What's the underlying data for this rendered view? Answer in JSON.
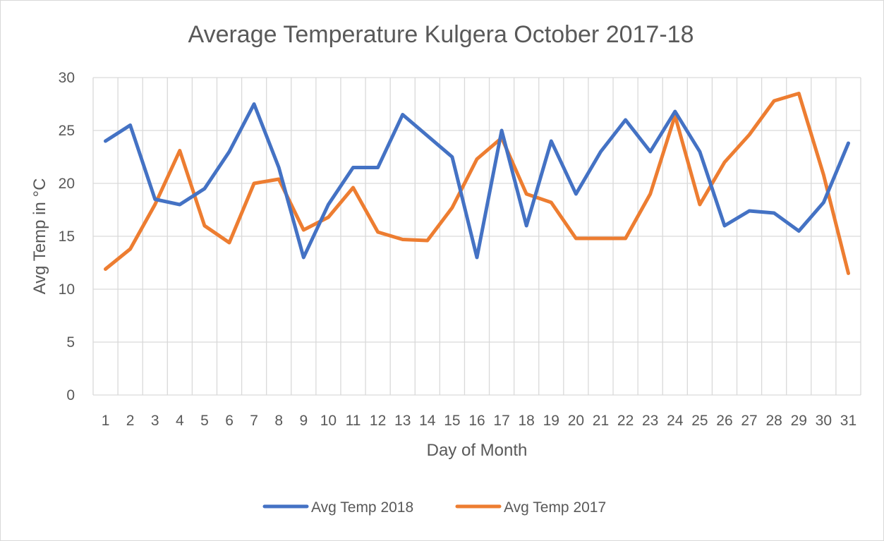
{
  "chart_data": {
    "type": "line",
    "title": "Average Temperature Kulgera October 2017-18",
    "xlabel": "Day of Month",
    "ylabel": "Avg Temp in °C",
    "ylim": [
      0,
      30
    ],
    "yticks": [
      "0",
      "5",
      "10",
      "15",
      "20",
      "25",
      "30"
    ],
    "grid": true,
    "legend": "bottom",
    "categories": [
      "1",
      "2",
      "3",
      "4",
      "5",
      "6",
      "7",
      "8",
      "9",
      "10",
      "11",
      "12",
      "13",
      "14",
      "15",
      "16",
      "17",
      "18",
      "19",
      "20",
      "21",
      "22",
      "23",
      "24",
      "25",
      "26",
      "27",
      "28",
      "29",
      "30",
      "31"
    ],
    "series": [
      {
        "name": "Avg Temp 2018",
        "color": "#4472c4",
        "values": [
          24,
          25.5,
          18.5,
          18,
          19.5,
          23,
          27.5,
          21.5,
          13,
          18,
          21.5,
          21.5,
          26.5,
          24.5,
          22.5,
          13,
          25,
          16,
          24,
          19,
          23,
          26,
          23,
          26.8,
          23,
          16,
          17.4,
          17.2,
          15.5,
          18.2,
          23.8
        ]
      },
      {
        "name": "Avg Temp 2017",
        "color": "#ed7d31",
        "values": [
          11.9,
          13.8,
          18,
          23.1,
          16,
          14.4,
          20,
          20.4,
          15.6,
          16.8,
          19.6,
          15.4,
          14.7,
          14.6,
          17.7,
          22.3,
          24.3,
          19,
          18.2,
          14.8,
          14.8,
          14.8,
          19,
          26.4,
          18,
          22,
          24.6,
          27.8,
          28.5,
          20.8,
          11.5
        ]
      }
    ]
  }
}
